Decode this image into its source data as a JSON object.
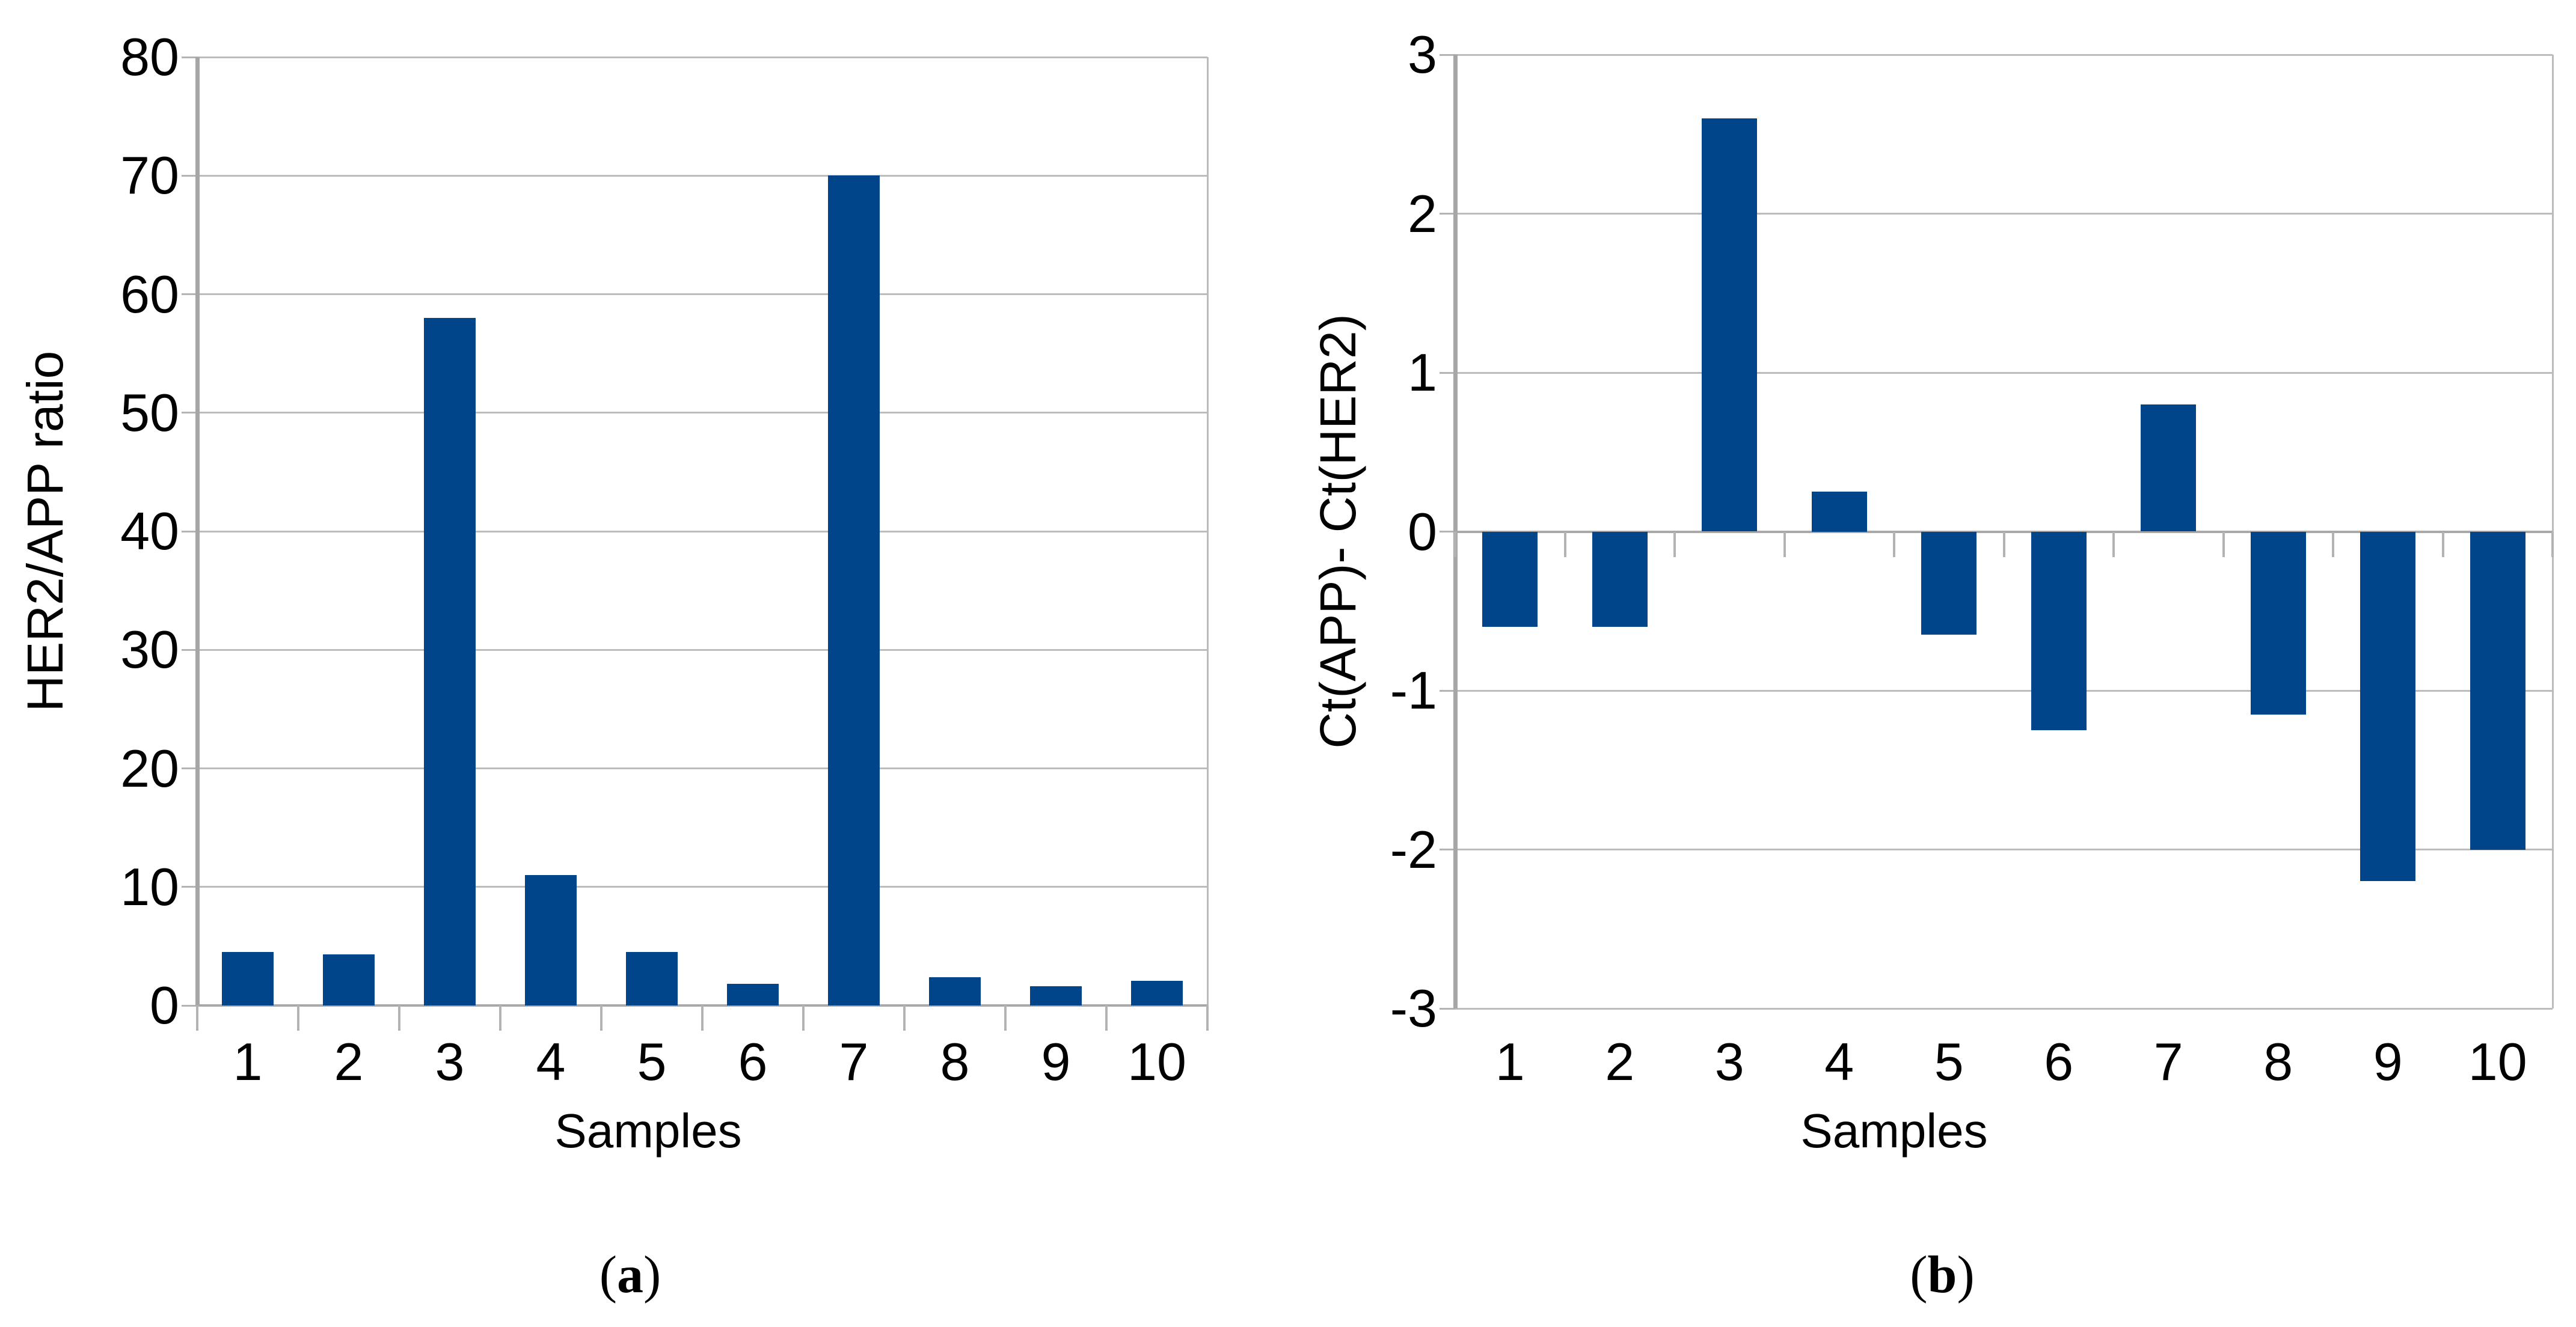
{
  "figure": {
    "background": "#ffffff",
    "bar_color": "#004589",
    "gridline_color": "#bcbcbc",
    "axis_line_color": "#a6a6a6",
    "text_color": "#000000"
  },
  "chart_data": [
    {
      "id": "a",
      "type": "bar",
      "categories": [
        "1",
        "2",
        "3",
        "4",
        "5",
        "6",
        "7",
        "8",
        "9",
        "10"
      ],
      "values": [
        4.5,
        4.3,
        58,
        11,
        4.5,
        1.8,
        70,
        2.4,
        1.6,
        2.1
      ],
      "xlabel": "Samples",
      "ylabel": "HER2/APP ratio",
      "ylim": [
        0,
        80
      ],
      "ytick_step": 10,
      "grid": "horizontal",
      "legend": "none",
      "caption": {
        "open": "(",
        "letter": "a",
        "close": ")"
      }
    },
    {
      "id": "b",
      "type": "bar",
      "categories": [
        "1",
        "2",
        "3",
        "4",
        "5",
        "6",
        "7",
        "8",
        "9",
        "10"
      ],
      "values": [
        -0.6,
        -0.6,
        2.6,
        0.25,
        -0.65,
        -1.25,
        0.8,
        -1.15,
        -2.2,
        -2.0
      ],
      "xlabel": "Samples",
      "ylabel": "Ct(APP)- Ct(HER2)",
      "ylim": [
        -3,
        3
      ],
      "ytick_step": 1,
      "grid": "horizontal",
      "legend": "none",
      "caption": {
        "open": "(",
        "letter": "b",
        "close": ")"
      }
    }
  ]
}
